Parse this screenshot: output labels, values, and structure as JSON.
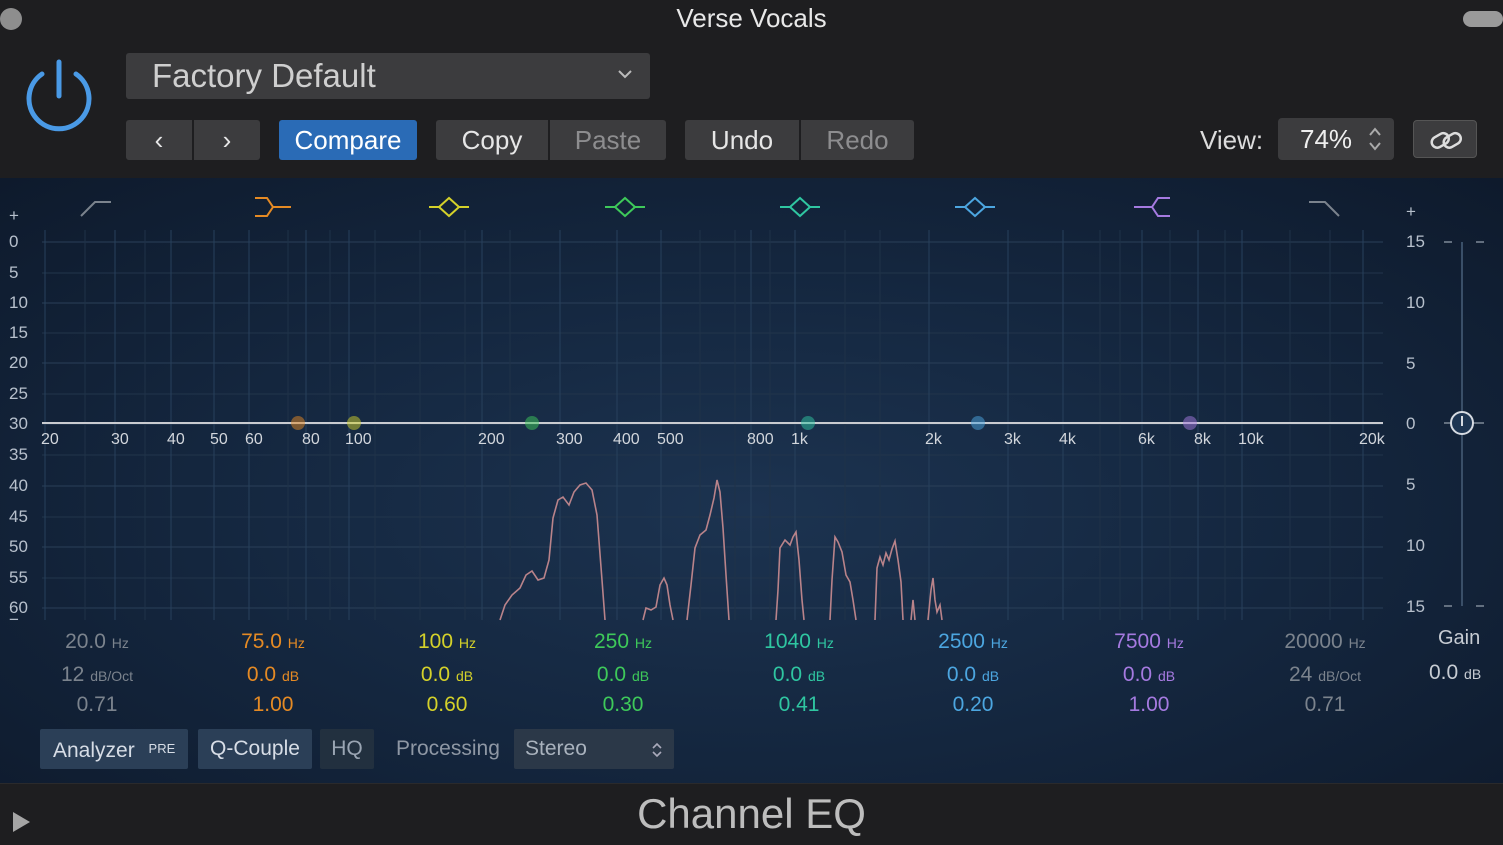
{
  "window": {
    "title": "Verse Vocals"
  },
  "preset": {
    "name": "Factory Default"
  },
  "toolbar": {
    "prev": "‹",
    "next": "›",
    "compare": "Compare",
    "copy": "Copy",
    "paste": "Paste",
    "undo": "Undo",
    "redo": "Redo",
    "view_label": "View:",
    "view_value": "74%"
  },
  "left_scale": [
    "+",
    "0",
    "5",
    "10",
    "15",
    "20",
    "25",
    "30",
    "35",
    "40",
    "45",
    "50",
    "55",
    "60",
    "−"
  ],
  "right_scale": [
    "+",
    "15",
    "10",
    "5",
    "0",
    "5",
    "10",
    "15"
  ],
  "freq_labels": [
    "20",
    "30",
    "40",
    "50",
    "60",
    "80",
    "100",
    "200",
    "300",
    "400",
    "500",
    "800",
    "1k",
    "2k",
    "3k",
    "4k",
    "6k",
    "8k",
    "10k",
    "20k"
  ],
  "bands": [
    {
      "freq": "20.0",
      "unit": "Hz",
      "gain": "12",
      "gain_unit": "dB/Oct",
      "q": "0.71",
      "color": "#7b838d",
      "type": "low-cut"
    },
    {
      "freq": "75.0",
      "unit": "Hz",
      "gain": "0.0",
      "gain_unit": "dB",
      "q": "1.00",
      "color": "#e58a24",
      "type": "low-shelf"
    },
    {
      "freq": "100",
      "unit": "Hz",
      "gain": "0.0",
      "gain_unit": "dB",
      "q": "0.60",
      "color": "#d4d12a",
      "type": "bell"
    },
    {
      "freq": "250",
      "unit": "Hz",
      "gain": "0.0",
      "gain_unit": "dB",
      "q": "0.30",
      "color": "#3ec95a",
      "type": "bell"
    },
    {
      "freq": "1040",
      "unit": "Hz",
      "gain": "0.0",
      "gain_unit": "dB",
      "q": "0.41",
      "color": "#2fc6a1",
      "type": "bell"
    },
    {
      "freq": "2500",
      "unit": "Hz",
      "gain": "0.0",
      "gain_unit": "dB",
      "q": "0.20",
      "color": "#4ca6e0",
      "type": "bell"
    },
    {
      "freq": "7500",
      "unit": "Hz",
      "gain": "0.0",
      "gain_unit": "dB",
      "q": "1.00",
      "color": "#a57ae0",
      "type": "high-shelf"
    },
    {
      "freq": "20000",
      "unit": "Hz",
      "gain": "24",
      "gain_unit": "dB/Oct",
      "q": "0.71",
      "color": "#7b838d",
      "type": "high-cut"
    }
  ],
  "gain": {
    "label": "Gain",
    "value": "0.0",
    "unit": "dB"
  },
  "bottom": {
    "analyzer": "Analyzer",
    "pre": "PRE",
    "qcouple": "Q-Couple",
    "hq": "HQ",
    "processing": "Processing",
    "stereo": "Stereo"
  },
  "footer": {
    "title": "Channel EQ"
  }
}
